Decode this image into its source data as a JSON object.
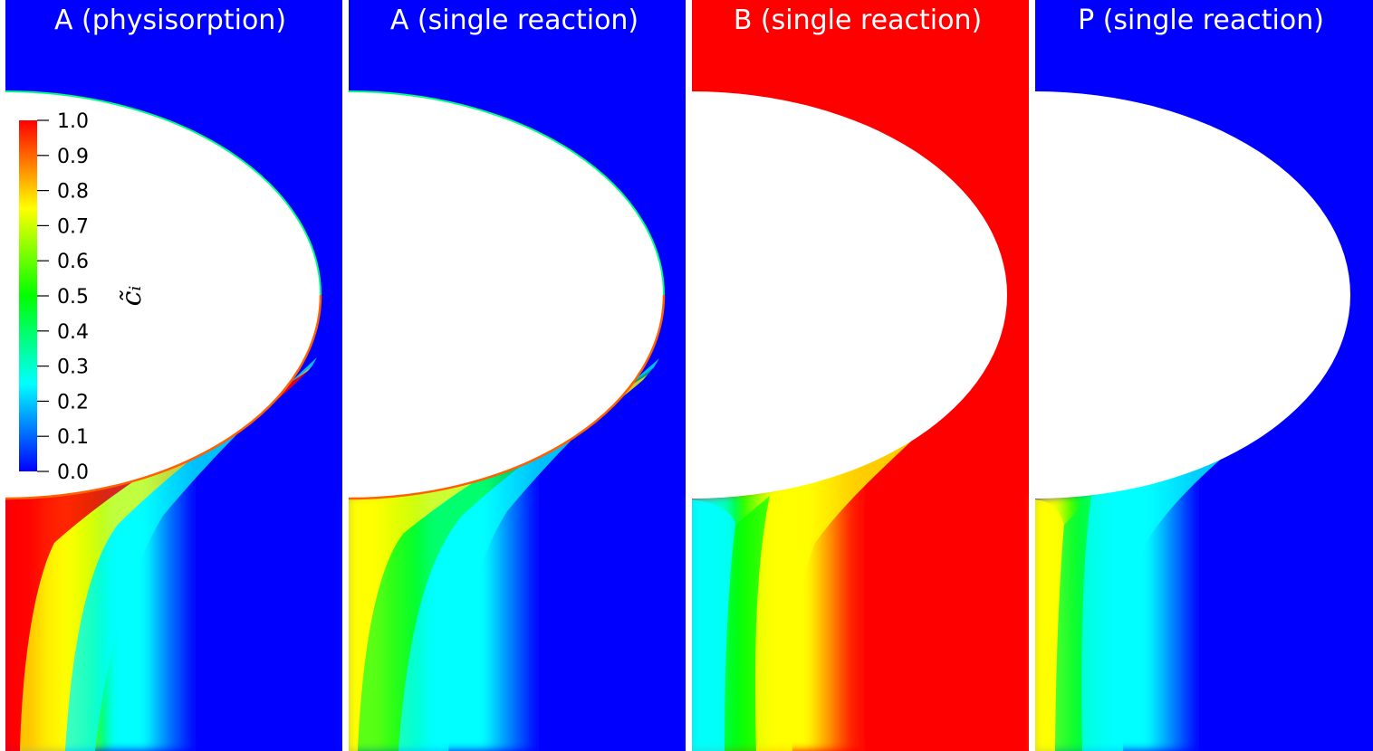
{
  "panels": [
    {
      "title": "A (physisorption)",
      "variant": "A_phys"
    },
    {
      "title": "A (single reaction)",
      "variant": "A_single"
    },
    {
      "title": "B (single reaction)",
      "variant": "B_single"
    },
    {
      "title": "P (single reaction)",
      "variant": "P_single"
    }
  ],
  "colorbar": {
    "title": "c̃ᵢ",
    "ticks": [
      "1.0",
      "0.9",
      "0.8",
      "0.7",
      "0.6",
      "0.5",
      "0.4",
      "0.3",
      "0.2",
      "0.1",
      "0.0"
    ],
    "range": [
      0,
      1
    ],
    "colormap": [
      "#0000ff",
      "#00ffff",
      "#00ff00",
      "#ffff00",
      "#ff0000"
    ]
  },
  "colors": {
    "low": "#0000ff",
    "high": "#ff0000",
    "cyan": "#00ffff",
    "green": "#00ff00",
    "yellow": "#ffff00",
    "obstacle": "#ffffff",
    "separator": "#ffffff"
  }
}
